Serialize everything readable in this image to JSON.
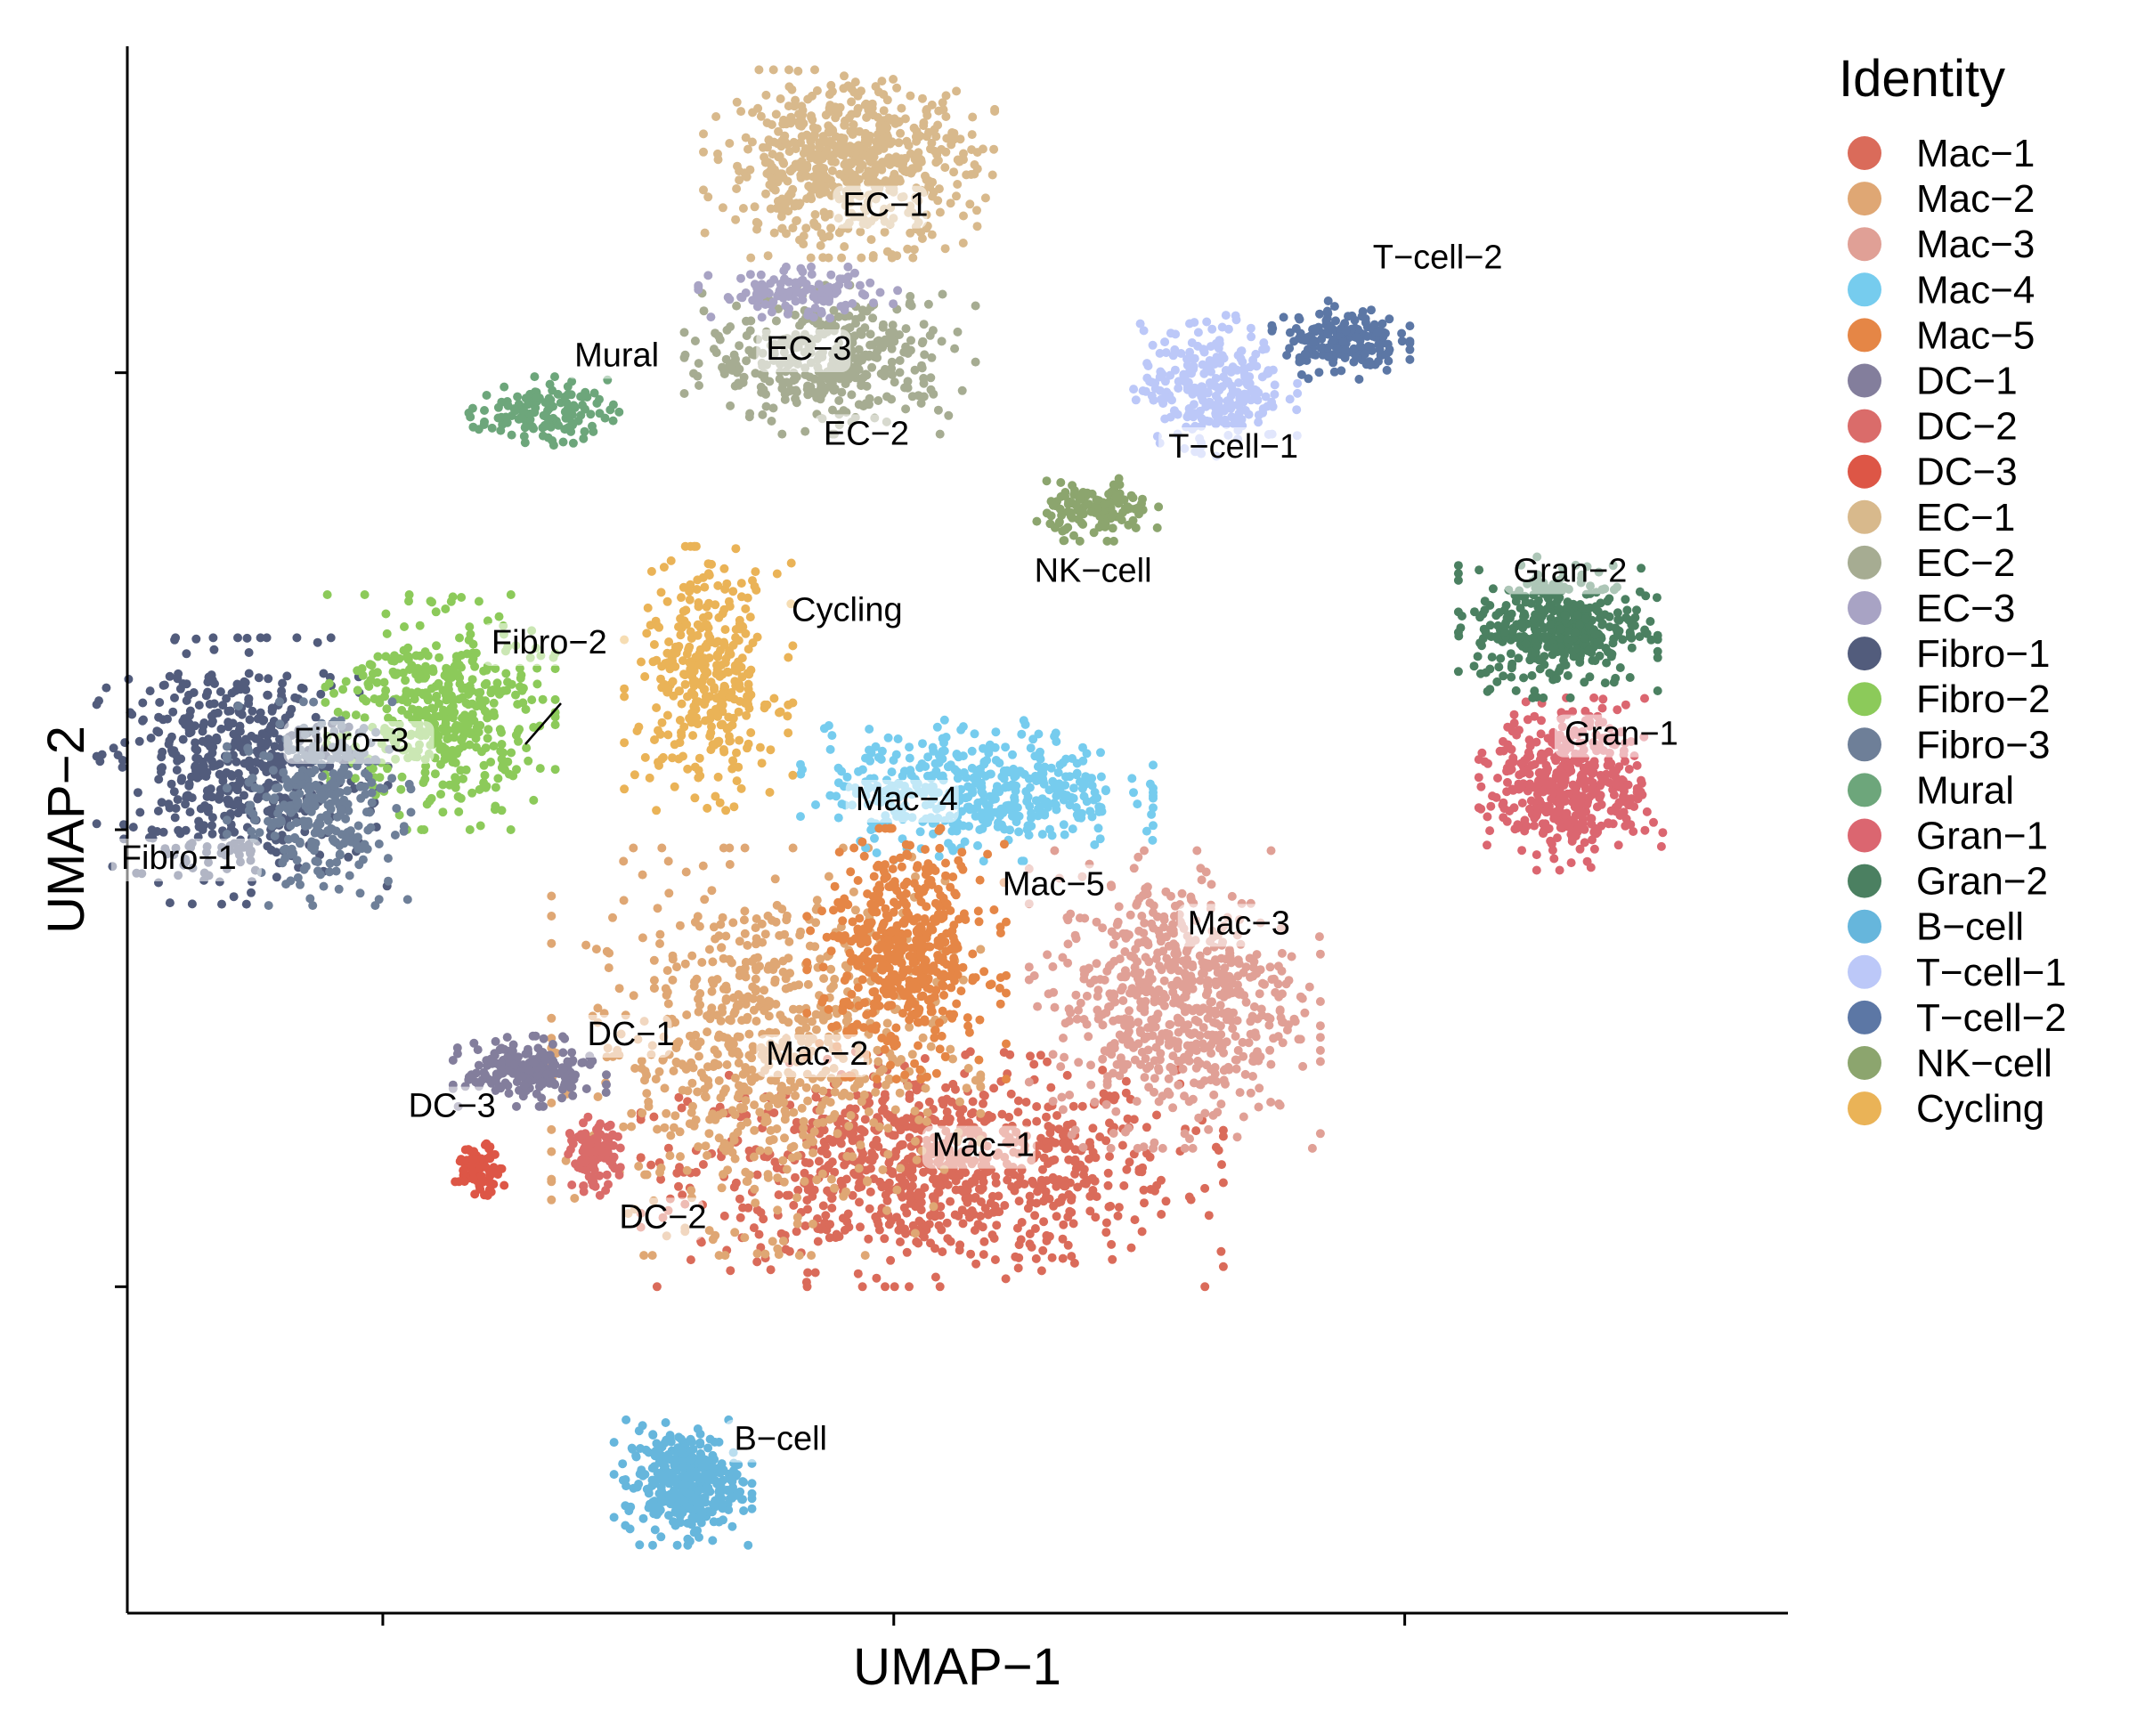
{
  "chart_data": {
    "type": "scatter",
    "title": "",
    "xlabel": "UMAP−1",
    "ylabel": "UMAP−2",
    "xlim": [
      -12,
      14
    ],
    "ylim": [
      -12,
      12
    ],
    "x_ticks": [
      -8,
      0,
      8
    ],
    "y_ticks": [
      -7,
      0,
      7
    ],
    "grid": false,
    "legend": {
      "title": "Identity",
      "placement": "right",
      "entries": [
        "Mac−1",
        "Mac−2",
        "Mac−3",
        "Mac−4",
        "Mac−5",
        "DC−1",
        "DC−2",
        "DC−3",
        "EC−1",
        "EC−2",
        "EC−3",
        "Fibro−1",
        "Fibro−2",
        "Fibro−3",
        "Mural",
        "Gran−1",
        "Gran−2",
        "B−cell",
        "T−cell−1",
        "T−cell−2",
        "NK−cell",
        "Cycling"
      ]
    },
    "series": [
      {
        "name": "Mac−1",
        "color": "#DA6B5A",
        "center": [
          0.6,
          -5.2
        ],
        "spread": [
          3.8,
          1.5
        ],
        "n": 900,
        "cluster_label": [
          0.6,
          -5.0
        ]
      },
      {
        "name": "Mac−2",
        "color": "#DFA774",
        "center": [
          -2.0,
          -3.4
        ],
        "spread": [
          2.8,
          2.6
        ],
        "n": 750,
        "cluster_label": [
          -2.0,
          -3.6
        ]
      },
      {
        "name": "Mac−3",
        "color": "#E0A096",
        "center": [
          4.4,
          -2.6
        ],
        "spread": [
          1.9,
          1.9
        ],
        "n": 650,
        "cluster_label": [
          4.6,
          -1.6
        ]
      },
      {
        "name": "Mac−4",
        "color": "#76CCEE",
        "center": [
          1.3,
          0.6
        ],
        "spread": [
          2.3,
          0.9
        ],
        "n": 450,
        "cluster_label": [
          -0.6,
          0.3
        ]
      },
      {
        "name": "Mac−5",
        "color": "#E58646",
        "center": [
          0.2,
          -1.9
        ],
        "spread": [
          1.3,
          1.6
        ],
        "n": 500,
        "cluster_label": [
          1.7,
          -1.0
        ]
      },
      {
        "name": "DC−1",
        "color": "#837E9C",
        "center": [
          -5.7,
          -3.7
        ],
        "spread": [
          1.0,
          0.45
        ],
        "n": 220,
        "cluster_label": [
          -4.8,
          -3.3
        ]
      },
      {
        "name": "DC−2",
        "color": "#DA6C6A",
        "center": [
          -4.7,
          -5.0
        ],
        "spread": [
          0.35,
          0.5
        ],
        "n": 110,
        "cluster_label": [
          -4.3,
          -6.1
        ]
      },
      {
        "name": "DC−3",
        "color": "#DD5646",
        "center": [
          -6.5,
          -5.2
        ],
        "spread": [
          0.35,
          0.35
        ],
        "n": 90,
        "cluster_label": [
          -7.6,
          -4.4
        ]
      },
      {
        "name": "EC−1",
        "color": "#D8B98C",
        "center": [
          -0.7,
          10.2
        ],
        "spread": [
          1.9,
          1.2
        ],
        "n": 650,
        "cluster_label": [
          -0.8,
          9.4
        ]
      },
      {
        "name": "EC−2",
        "color": "#A6AC92",
        "center": [
          -1.0,
          7.2
        ],
        "spread": [
          1.9,
          0.95
        ],
        "n": 400,
        "cluster_label": [
          -1.1,
          5.9
        ]
      },
      {
        "name": "EC−3",
        "color": "#A8A3C4",
        "center": [
          -1.5,
          8.2
        ],
        "spread": [
          1.3,
          0.35
        ],
        "n": 120,
        "cluster_label": [
          -2.0,
          7.2
        ]
      },
      {
        "name": "Fibro−1",
        "color": "#525C7C",
        "center": [
          -10.2,
          0.9
        ],
        "spread": [
          1.9,
          1.7
        ],
        "n": 550,
        "cluster_label": [
          -12.1,
          -0.6
        ]
      },
      {
        "name": "Fibro−2",
        "color": "#8CCA5A",
        "center": [
          -7.1,
          1.8
        ],
        "spread": [
          1.5,
          1.5
        ],
        "n": 450,
        "cluster_label": [
          -6.3,
          2.7
        ]
      },
      {
        "name": "Fibro−3",
        "color": "#6E7F98",
        "center": [
          -9.0,
          0.4
        ],
        "spread": [
          1.2,
          1.3
        ],
        "n": 300,
        "cluster_label": [
          -9.4,
          1.2
        ]
      },
      {
        "name": "Mural",
        "color": "#6DA67B",
        "center": [
          -5.5,
          6.4
        ],
        "spread": [
          1.0,
          0.45
        ],
        "n": 130,
        "cluster_label": [
          -5.0,
          7.1
        ]
      },
      {
        "name": "Gran−1",
        "color": "#DB6670",
        "center": [
          10.6,
          0.7
        ],
        "spread": [
          1.2,
          1.1
        ],
        "n": 450,
        "cluster_label": [
          10.5,
          1.3
        ]
      },
      {
        "name": "Gran−2",
        "color": "#4B8061",
        "center": [
          10.4,
          3.1
        ],
        "spread": [
          1.3,
          0.9
        ],
        "n": 400,
        "cluster_label": [
          9.7,
          3.8
        ]
      },
      {
        "name": "B−cell",
        "color": "#66B6DC",
        "center": [
          -3.3,
          -10.0
        ],
        "spread": [
          0.9,
          0.8
        ],
        "n": 350,
        "cluster_label": [
          -2.5,
          -9.5
        ]
      },
      {
        "name": "T−cell−1",
        "color": "#BCC8F8",
        "center": [
          5.0,
          6.8
        ],
        "spread": [
          1.1,
          0.9
        ],
        "n": 260,
        "cluster_label": [
          4.3,
          5.7
        ]
      },
      {
        "name": "T−cell−2",
        "color": "#5C77A5",
        "center": [
          7.0,
          7.5
        ],
        "spread": [
          0.9,
          0.5
        ],
        "n": 180,
        "cluster_label": [
          7.5,
          8.6
        ]
      },
      {
        "name": "NK−cell",
        "color": "#8CA56E",
        "center": [
          3.2,
          4.9
        ],
        "spread": [
          0.8,
          0.4
        ],
        "n": 130,
        "cluster_label": [
          2.2,
          3.8
        ]
      },
      {
        "name": "Cycling",
        "color": "#EAB357",
        "center": [
          -2.9,
          2.3
        ],
        "spread": [
          1.1,
          1.7
        ],
        "n": 350,
        "cluster_label": [
          -1.6,
          3.2
        ]
      }
    ]
  }
}
